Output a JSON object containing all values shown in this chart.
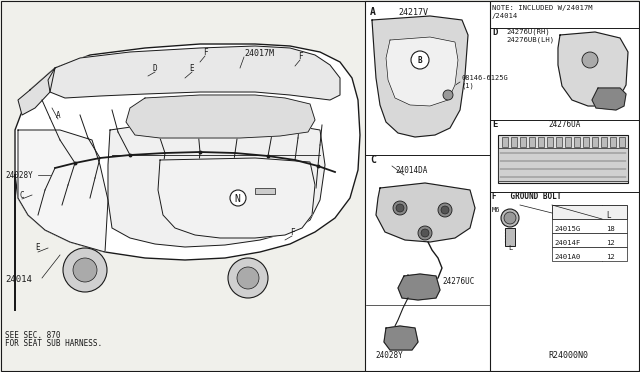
{
  "bg_color": "#f0f0eb",
  "line_color": "#1a1a1a",
  "note_text": "NOTE: INCLUDED W/24017M\n/24014",
  "part_labels": {
    "main_harness": "24014",
    "label_24017M": "24017M",
    "label_24028Y_top": "24028Y",
    "label_24217V": "24217V",
    "label_08146_line1": "08146-6125G",
    "label_08146_line2": "(1)",
    "label_24276U_line1": "24276U(RH)",
    "label_24276U_line2": "24276UB(LH)",
    "label_24276UA": "24276UA",
    "label_24014DA": "24014DA",
    "label_24276UC": "24276UC",
    "label_24028Y_bot": "24028Y",
    "section_A": "A",
    "section_C": "C",
    "section_D": "D",
    "section_E": "E",
    "section_F_label": "F   GROUND BOLT",
    "M6_label": "M6",
    "L_label": "L",
    "table_header_L": "L",
    "table_rows": [
      [
        "24015G",
        "18"
      ],
      [
        "24014F",
        "12"
      ],
      [
        "2401A0",
        "12"
      ]
    ],
    "ref_number": "R24000N0",
    "see_sec_line1": "SEE SEC. 870",
    "see_sec_line2": "FOR SEAT SUB HARNESS."
  }
}
